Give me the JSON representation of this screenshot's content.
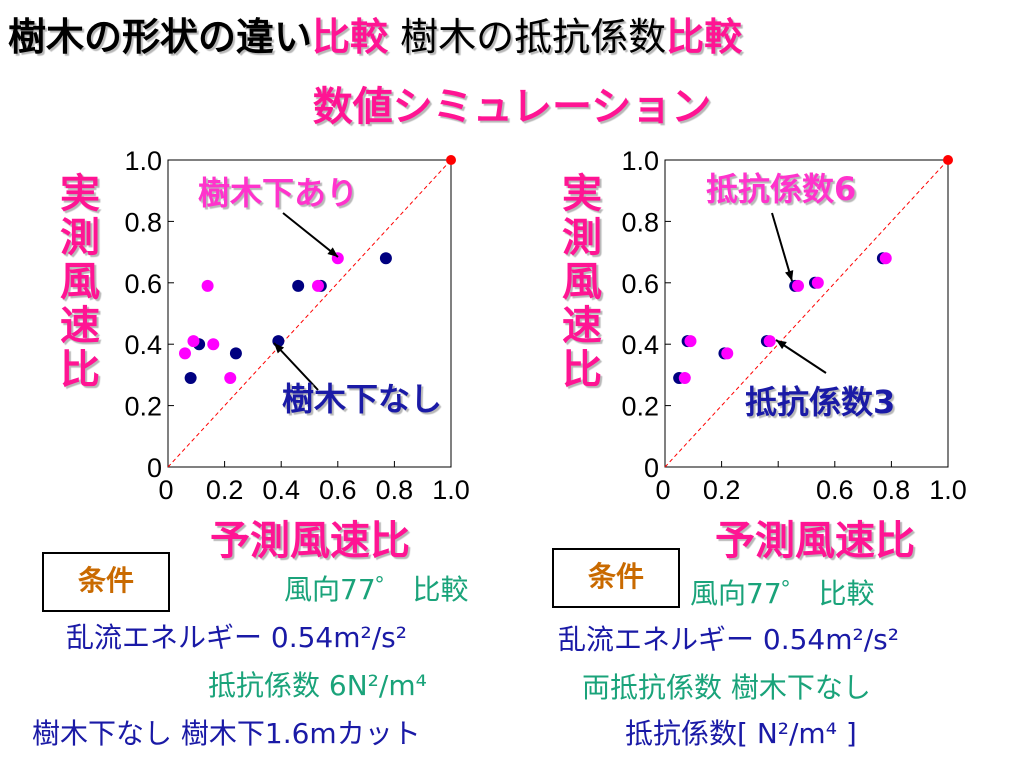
{
  "title": {
    "part1": "樹木の形状の違い",
    "part2": "比較",
    "part3": " 樹木の抵抗係数",
    "part4": "比較",
    "line2": "数値シミュレーション"
  },
  "colors": {
    "series_with": "#ff00ff",
    "series_without": "#000080",
    "accent": "#ff1493",
    "diag": "#ff0000"
  },
  "charts": [
    {
      "ylabel": [
        "実",
        "測",
        "風",
        "速",
        "比"
      ],
      "xlabel": "予測風速比",
      "x_ticks": [
        "0",
        "0.2",
        "0.4",
        "0.6",
        "0.8",
        "1.0"
      ],
      "y_ticks": [
        "0",
        "0.2",
        "0.4",
        "0.6",
        "0.8",
        "1.0"
      ],
      "annotation_top": "樹木下あり",
      "annotation_bottom": "樹木下なし",
      "condition_box": "条件",
      "conditions": [
        "風向77゜ 比較",
        "乱流エネルギー 0.54m²/s²",
        "抵抗係数 6N²/m⁴",
        "樹木下なし 樹木下1.6mカット"
      ]
    },
    {
      "ylabel": [
        "実",
        "測",
        "風",
        "速",
        "比"
      ],
      "xlabel": "予測風速比",
      "x_ticks": [
        "0",
        "0.2",
        "",
        "0.6",
        "0.8",
        "1.0"
      ],
      "y_ticks": [
        "0",
        "0.2",
        "0.4",
        "0.6",
        "0.8",
        "1.0"
      ],
      "annotation_top": "抵抗係数6",
      "annotation_bottom": "抵抗係数3",
      "condition_box": "条件",
      "conditions": [
        "風向77゜ 比較",
        "乱流エネルギー 0.54m²/s²",
        "両抵抗係数 樹木下なし",
        "抵抗係数[ N²/m⁴ ]"
      ]
    }
  ],
  "chart_data": [
    {
      "type": "scatter",
      "xlim": [
        0,
        1.0
      ],
      "ylim": [
        0,
        1.0
      ],
      "series": [
        {
          "name": "樹木下あり",
          "color": "#ff00ff",
          "points": [
            [
              0.06,
              0.37
            ],
            [
              0.09,
              0.41
            ],
            [
              0.14,
              0.59
            ],
            [
              0.16,
              0.4
            ],
            [
              0.22,
              0.29
            ],
            [
              0.53,
              0.59
            ],
            [
              0.6,
              0.68
            ]
          ]
        },
        {
          "name": "樹木下なし",
          "color": "#000080",
          "points": [
            [
              0.08,
              0.29
            ],
            [
              0.11,
              0.4
            ],
            [
              0.24,
              0.37
            ],
            [
              0.39,
              0.41
            ],
            [
              0.46,
              0.59
            ],
            [
              0.54,
              0.59
            ],
            [
              0.77,
              0.68
            ]
          ]
        }
      ],
      "reference_point": [
        1.0,
        1.0
      ]
    },
    {
      "type": "scatter",
      "xlim": [
        0,
        1.0
      ],
      "ylim": [
        0,
        1.0
      ],
      "series": [
        {
          "name": "抵抗係数6",
          "color": "#ff00ff",
          "points": [
            [
              0.07,
              0.29
            ],
            [
              0.09,
              0.41
            ],
            [
              0.22,
              0.37
            ],
            [
              0.37,
              0.41
            ],
            [
              0.47,
              0.59
            ],
            [
              0.54,
              0.6
            ],
            [
              0.78,
              0.68
            ]
          ]
        },
        {
          "name": "抵抗係数3",
          "color": "#000080",
          "points": [
            [
              0.05,
              0.29
            ],
            [
              0.08,
              0.41
            ],
            [
              0.21,
              0.37
            ],
            [
              0.36,
              0.41
            ],
            [
              0.46,
              0.59
            ],
            [
              0.53,
              0.6
            ],
            [
              0.77,
              0.68
            ]
          ]
        }
      ],
      "reference_point": [
        1.0,
        1.0
      ]
    }
  ]
}
